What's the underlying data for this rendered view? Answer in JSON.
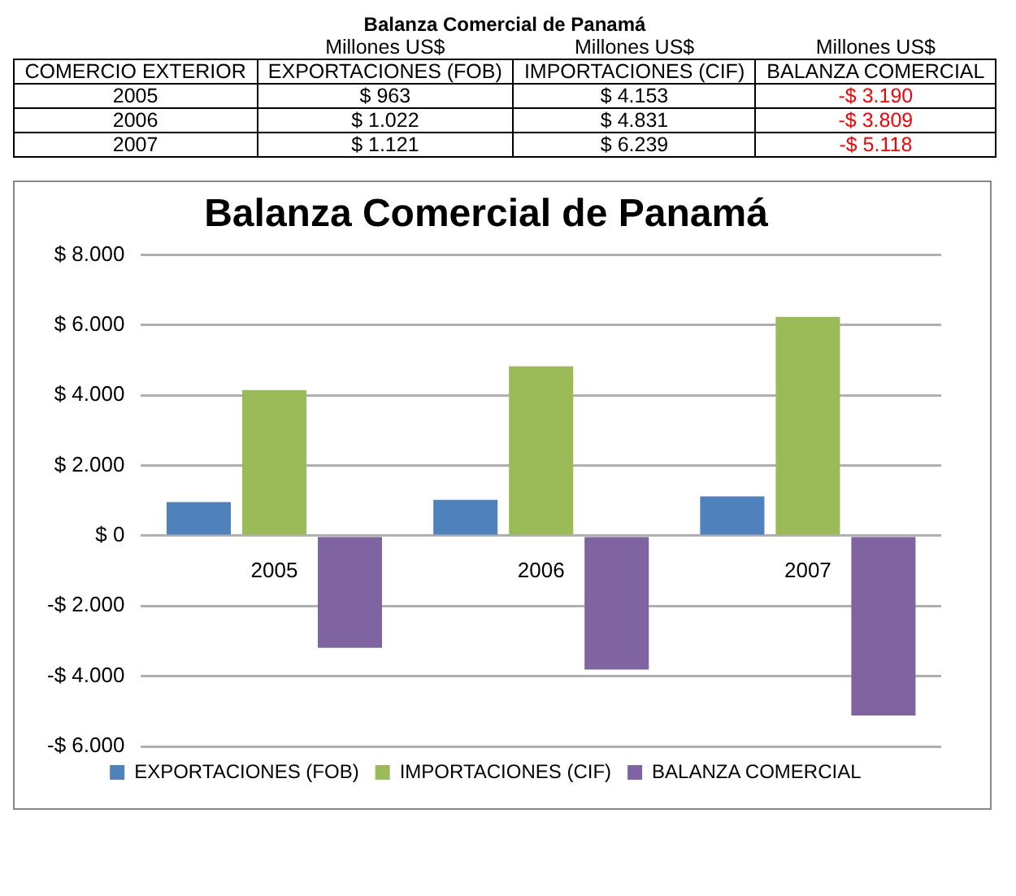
{
  "chart_data": {
    "type": "bar",
    "title": "Balanza Comercial de Panamá",
    "annotations": [
      "Balanza Comercial de Panamá",
      "Millones US$",
      "Millones US$",
      "Millones US$",
      "COMERCIO EXTERIOR",
      "$ 963",
      "$ 4.153",
      "-$ 3.190",
      "$ 1.022",
      "$ 4.831",
      "-$ 3.809",
      "$ 1.121",
      "$ 6.239",
      "-$ 5.118"
    ],
    "categories": [
      "2005",
      "2006",
      "2007"
    ],
    "series": [
      {
        "name": "EXPORTACIONES (FOB)",
        "color": "#4f81bd",
        "values": [
          963,
          1022,
          1121
        ]
      },
      {
        "name": "IMPORTACIONES (CIF)",
        "color": "#9bbb59",
        "values": [
          4153,
          4831,
          6239
        ]
      },
      {
        "name": "BALANZA COMERCIAL",
        "color": "#8064a2",
        "values": [
          -3190,
          -3809,
          -5118
        ]
      }
    ],
    "ylim": [
      -6000,
      8000
    ],
    "yticks": [
      {
        "value": -6000,
        "label": "-$ 6.000"
      },
      {
        "value": -4000,
        "label": "-$ 4.000"
      },
      {
        "value": -2000,
        "label": "-$ 2.000"
      },
      {
        "value": 0,
        "label": "$ 0"
      },
      {
        "value": 2000,
        "label": "$ 2.000"
      },
      {
        "value": 4000,
        "label": "$ 4.000"
      },
      {
        "value": 6000,
        "label": "$ 6.000"
      },
      {
        "value": 8000,
        "label": "$ 8.000"
      }
    ],
    "grid": "y",
    "legend": "bottom"
  }
}
